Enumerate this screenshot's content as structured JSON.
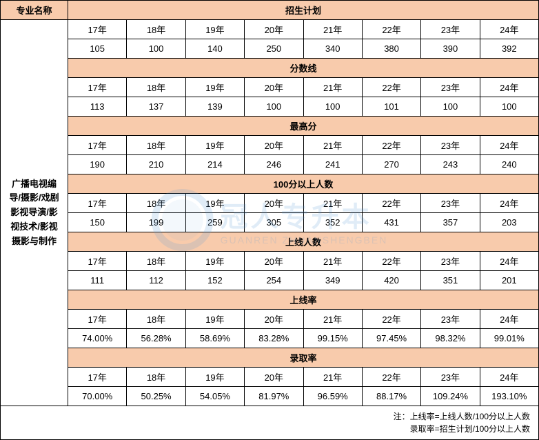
{
  "colors": {
    "header_bg": "#f8cbac",
    "border": "#000000",
    "watermark_color": "#5b9bd5",
    "background": "#ffffff"
  },
  "typography": {
    "cell_fontsize": 13,
    "note_fontsize": 12,
    "font_family": "Microsoft YaHei"
  },
  "watermark": {
    "text_cn": "冠人专升本",
    "text_en": "GUANREN ZHUANSHENGBEN"
  },
  "headers": {
    "major_col": "专业名称",
    "main_title": "招生计划"
  },
  "major_name": "广播电视编导/摄影/戏剧影视导演/影视技术/影视摄影与制作",
  "years": [
    "17年",
    "18年",
    "19年",
    "20年",
    "21年",
    "22年",
    "23年",
    "24年"
  ],
  "sections": [
    {
      "title": "招生计划",
      "values": [
        "105",
        "100",
        "140",
        "250",
        "340",
        "380",
        "390",
        "392"
      ]
    },
    {
      "title": "分数线",
      "values": [
        "113",
        "137",
        "139",
        "100",
        "100",
        "101",
        "100",
        "100"
      ]
    },
    {
      "title": "最高分",
      "values": [
        "190",
        "210",
        "214",
        "246",
        "241",
        "270",
        "243",
        "240"
      ]
    },
    {
      "title": "100分以上人数",
      "values": [
        "150",
        "199",
        "259",
        "305",
        "352",
        "431",
        "357",
        "203"
      ]
    },
    {
      "title": "上线人数",
      "values": [
        "111",
        "112",
        "152",
        "254",
        "349",
        "420",
        "351",
        "201"
      ]
    },
    {
      "title": "上线率",
      "values": [
        "74.00%",
        "56.28%",
        "58.69%",
        "83.28%",
        "99.15%",
        "97.45%",
        "98.32%",
        "99.01%"
      ]
    },
    {
      "title": "录取率",
      "values": [
        "70.00%",
        "50.25%",
        "54.05%",
        "81.97%",
        "96.59%",
        "88.17%",
        "109.24%",
        "193.10%"
      ]
    }
  ],
  "note": "注：上线率=上线人数/100分以上人数\n录取率=招生计划/100分以上人数"
}
